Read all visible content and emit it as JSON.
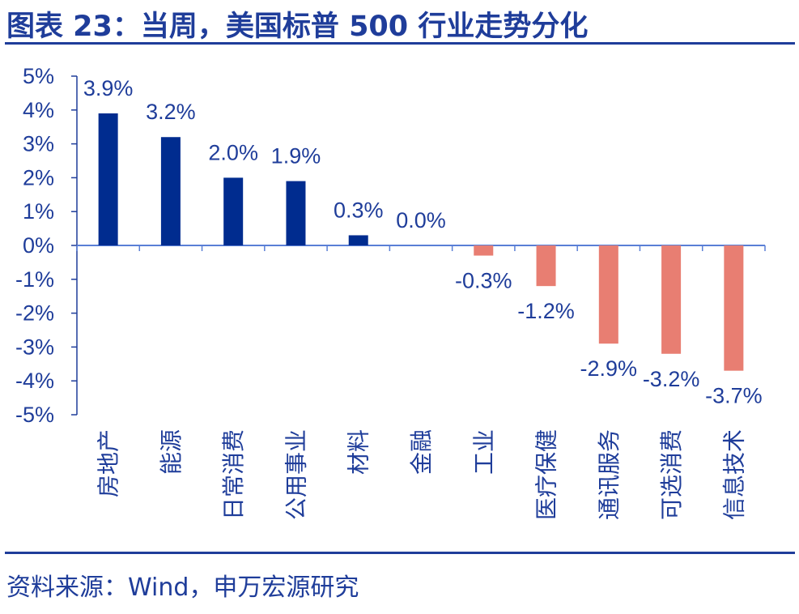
{
  "header": {
    "title": "图表 23：当周，美国标普 500 行业走势分化"
  },
  "footer": {
    "source": "资料来源：Wind，申万宏源研究"
  },
  "colors": {
    "positive": "#002c8f",
    "negative": "#e87e72",
    "axis": "#1f3d9a",
    "text": "#1f3d9a"
  },
  "chart_data": {
    "type": "bar",
    "categories": [
      "房地产",
      "能源",
      "日常消费",
      "公用事业",
      "材料",
      "金融",
      "工业",
      "医疗保健",
      "通讯服务",
      "可选消费",
      "信息技术"
    ],
    "values": [
      3.9,
      3.2,
      2.0,
      1.9,
      0.3,
      0.0,
      -0.3,
      -1.2,
      -2.9,
      -3.2,
      -3.7
    ],
    "data_labels": [
      "3.9%",
      "3.2%",
      "2.0%",
      "1.9%",
      "0.3%",
      "0.0%",
      "-0.3%",
      "-1.2%",
      "-2.9%",
      "-3.2%",
      "-3.7%"
    ],
    "y_ticks": [
      5,
      4,
      3,
      2,
      1,
      0,
      -1,
      -2,
      -3,
      -4,
      -5
    ],
    "y_tick_labels": [
      "5%",
      "4%",
      "3%",
      "2%",
      "1%",
      "0%",
      "-1%",
      "-2%",
      "-3%",
      "-4%",
      "-5%"
    ],
    "ylim": [
      -5,
      5
    ],
    "grid": false,
    "legend": "none"
  }
}
